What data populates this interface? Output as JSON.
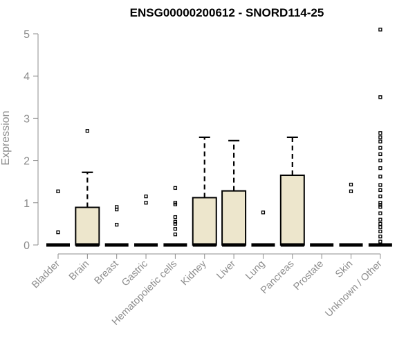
{
  "chart_data": {
    "type": "box",
    "title": "ENSG00000200612 - SNORD114-25",
    "xlabel": "",
    "ylabel": "Expression",
    "ylim": [
      0,
      5.1
    ],
    "yticks": [
      0,
      1,
      2,
      3,
      4,
      5
    ],
    "yticklabels": [
      "0",
      "1",
      "2",
      "3",
      "4",
      "5"
    ],
    "grid": false,
    "box_color": "#ede6cc",
    "categories": [
      "Bladder",
      "Brain",
      "Breast",
      "Gastric",
      "Hematopoietic cells",
      "Kidney",
      "Liver",
      "Lung",
      "Pancreas",
      "Prostate",
      "Skin",
      "Unknown / Other"
    ],
    "boxes": [
      {
        "q1": 0,
        "median": 0,
        "q3": 0,
        "whisker_low": 0,
        "whisker_high": 0,
        "outliers": [
          1.27,
          0.3
        ]
      },
      {
        "q1": 0,
        "median": 0,
        "q3": 0.89,
        "whisker_low": 0,
        "whisker_high": 1.72,
        "outliers": [
          2.7
        ]
      },
      {
        "q1": 0,
        "median": 0,
        "q3": 0,
        "whisker_low": 0,
        "whisker_high": 0,
        "outliers": [
          0.9,
          0.84,
          0.48
        ]
      },
      {
        "q1": 0,
        "median": 0,
        "q3": 0,
        "whisker_low": 0,
        "whisker_high": 0,
        "outliers": [
          1.15,
          1.0
        ]
      },
      {
        "q1": 0,
        "median": 0,
        "q3": 0,
        "whisker_low": 0,
        "whisker_high": 0,
        "outliers": [
          1.35,
          1.0,
          0.96,
          0.66,
          0.55,
          0.5,
          0.38,
          0.25
        ]
      },
      {
        "q1": 0,
        "median": 0,
        "q3": 1.12,
        "whisker_low": 0,
        "whisker_high": 2.55,
        "outliers": []
      },
      {
        "q1": 0,
        "median": 0,
        "q3": 1.28,
        "whisker_low": 0,
        "whisker_high": 2.47,
        "outliers": []
      },
      {
        "q1": 0,
        "median": 0,
        "q3": 0,
        "whisker_low": 0,
        "whisker_high": 0,
        "outliers": [
          0.77
        ]
      },
      {
        "q1": 0,
        "median": 0,
        "q3": 1.65,
        "whisker_low": 0,
        "whisker_high": 2.55,
        "outliers": []
      },
      {
        "q1": 0,
        "median": 0,
        "q3": 0,
        "whisker_low": 0,
        "whisker_high": 0,
        "outliers": []
      },
      {
        "q1": 0,
        "median": 0,
        "q3": 0,
        "whisker_low": 0,
        "whisker_high": 0,
        "outliers": [
          1.43,
          1.27
        ]
      },
      {
        "q1": 0,
        "median": 0,
        "q3": 0,
        "whisker_low": 0,
        "whisker_high": 0,
        "outliers": [
          5.1,
          3.5,
          2.65,
          2.55,
          2.45,
          2.3,
          2.15,
          2.0,
          1.82,
          1.62,
          1.42,
          1.3,
          1.15,
          1.0,
          0.95,
          0.9,
          0.75,
          0.6,
          0.5,
          0.42,
          0.32,
          0.2,
          0.08
        ]
      }
    ]
  }
}
